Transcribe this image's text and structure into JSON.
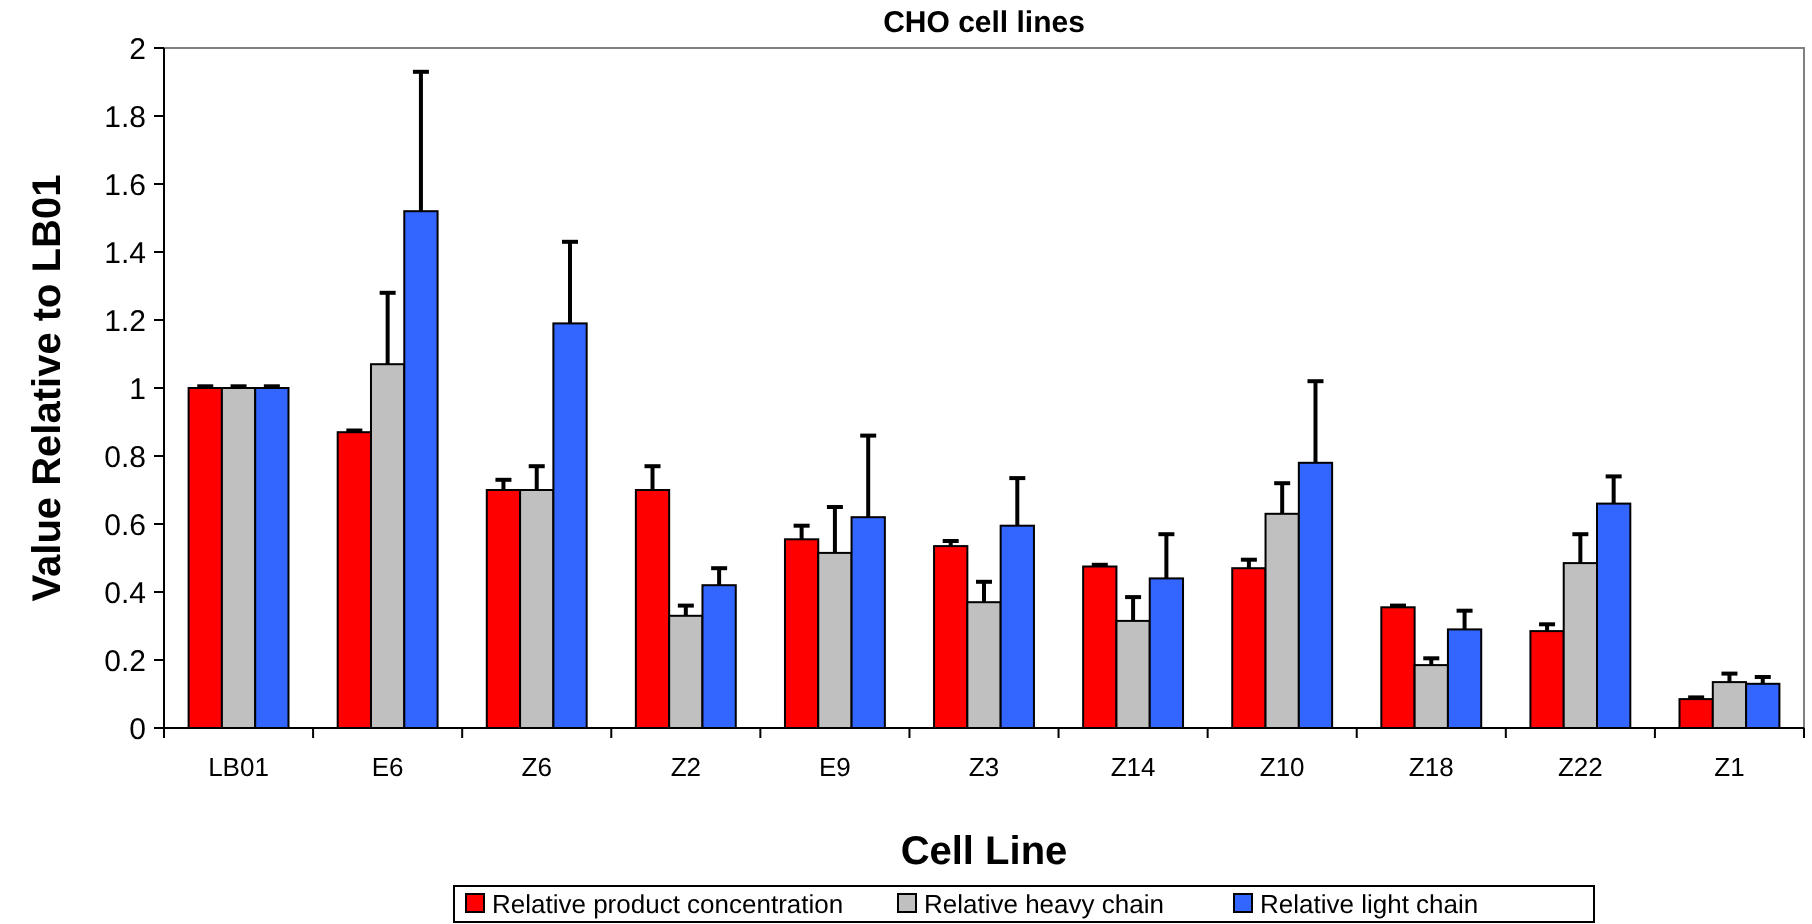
{
  "chart_data": {
    "type": "bar",
    "title": "CHO cell lines",
    "xlabel": "Cell Line",
    "ylabel": "Value Relative to LB01",
    "categories": [
      "LB01",
      "E6",
      "Z6",
      "Z2",
      "E9",
      "Z3",
      "Z14",
      "Z10",
      "Z18",
      "Z22",
      "Z1"
    ],
    "series": [
      {
        "name": "Relative product concentration",
        "color": "#ff0000",
        "values": [
          1,
          0.87,
          0.7,
          0.7,
          0.555,
          0.535,
          0.475,
          0.47,
          0.355,
          0.285,
          0.085
        ],
        "errors": [
          [
            1,
            1.005
          ],
          [
            0.87,
            0.875
          ],
          [
            0.7,
            0.73
          ],
          [
            0.7,
            0.77
          ],
          [
            0.555,
            0.595
          ],
          [
            0.535,
            0.55
          ],
          [
            0.475,
            0.48
          ],
          [
            0.47,
            0.495
          ],
          [
            0.355,
            0.36
          ],
          [
            0.285,
            0.305
          ],
          [
            0.085,
            0.09
          ]
        ]
      },
      {
        "name": "Relative heavy chain",
        "color": "#c0c0c0",
        "values": [
          1,
          1.07,
          0.7,
          0.33,
          0.515,
          0.37,
          0.315,
          0.63,
          0.185,
          0.485,
          0.135
        ],
        "errors": [
          [
            1,
            1.005
          ],
          [
            1.07,
            1.28
          ],
          [
            0.7,
            0.77
          ],
          [
            0.33,
            0.36
          ],
          [
            0.515,
            0.65
          ],
          [
            0.37,
            0.43
          ],
          [
            0.315,
            0.385
          ],
          [
            0.63,
            0.72
          ],
          [
            0.185,
            0.205
          ],
          [
            0.485,
            0.57
          ],
          [
            0.135,
            0.16
          ]
        ]
      },
      {
        "name": "Relative light chain",
        "color": "#3366ff",
        "values": [
          1,
          1.52,
          1.19,
          0.42,
          0.62,
          0.595,
          0.44,
          0.78,
          0.29,
          0.66,
          0.13
        ],
        "errors": [
          [
            1,
            1.005
          ],
          [
            1.52,
            1.93
          ],
          [
            1.19,
            1.43
          ],
          [
            0.42,
            0.47
          ],
          [
            0.62,
            0.86
          ],
          [
            0.595,
            0.735
          ],
          [
            0.44,
            0.57
          ],
          [
            0.78,
            1.02
          ],
          [
            0.29,
            0.345
          ],
          [
            0.66,
            0.74
          ],
          [
            0.13,
            0.15
          ]
        ]
      }
    ],
    "ylim": [
      0,
      2
    ],
    "yticks": [
      0,
      0.2,
      0.4,
      0.6,
      0.8,
      1,
      1.2,
      1.4,
      1.6,
      1.8,
      2
    ],
    "grid": false,
    "legend": "bottom"
  }
}
